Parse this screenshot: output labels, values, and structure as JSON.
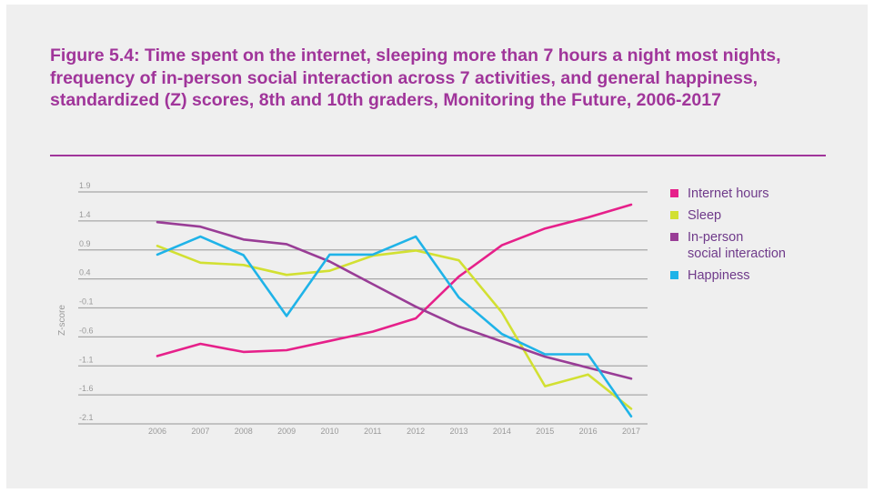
{
  "chart_data": {
    "type": "line",
    "title": "Figure 5.4: Time spent on the internet, sleeping more than 7 hours a night most nights, frequency of in-person social interaction across 7 activities, and general happiness, standardized (Z) scores, 8th and 10th graders, Monitoring the Future, 2006-2017",
    "xlabel": "",
    "ylabel": "Z-score",
    "x": [
      "2006",
      "2007",
      "2008",
      "2009",
      "2010",
      "2011",
      "2012",
      "2013",
      "2014",
      "2015",
      "2016",
      "2017"
    ],
    "yticks": [
      "1.9",
      "1.4",
      "0.9",
      "0.4",
      "-0.1",
      "-0.6",
      "-1.1",
      "-1.6",
      "-2.1"
    ],
    "ylim": [
      -2.1,
      1.9
    ],
    "grid": true,
    "legend_position": "right",
    "series": [
      {
        "name": "Internet hours",
        "color": "#e6208a",
        "values": [
          -0.93,
          -0.72,
          -0.86,
          -0.83,
          -0.67,
          -0.51,
          -0.28,
          0.44,
          0.98,
          1.27,
          1.46,
          1.68
        ]
      },
      {
        "name": "Sleep",
        "color": "#d2e032",
        "values": [
          0.97,
          0.68,
          0.64,
          0.47,
          0.54,
          0.8,
          0.89,
          0.72,
          -0.18,
          -1.45,
          -1.25,
          -1.84
        ]
      },
      {
        "name": "In-person social interaction",
        "color": "#993d96",
        "values": [
          1.38,
          1.3,
          1.08,
          1.0,
          0.7,
          0.31,
          -0.08,
          -0.42,
          -0.68,
          -0.94,
          -1.13,
          -1.32
        ]
      },
      {
        "name": "Happiness",
        "color": "#1fb3e8",
        "values": [
          0.82,
          1.13,
          0.81,
          -0.24,
          0.82,
          0.82,
          1.13,
          0.08,
          -0.55,
          -0.9,
          -0.9,
          -1.97
        ]
      }
    ]
  },
  "legend": {
    "internet": "Internet hours",
    "sleep": "Sleep",
    "inperson_1": "In-person",
    "inperson_2": "social interaction",
    "happiness": "Happiness"
  }
}
